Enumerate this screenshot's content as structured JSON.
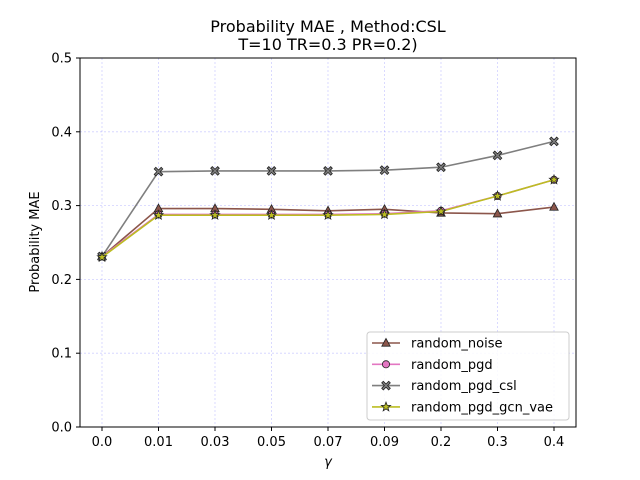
{
  "chart_data": {
    "type": "line",
    "title_line1": "Probability MAE , Method:CSL",
    "title_line2": "T=10 TR=0.3 PR=0.2)",
    "xlabel": "γ",
    "ylabel": "Probability MAE",
    "categories": [
      "0.0",
      "0.01",
      "0.03",
      "0.05",
      "0.07",
      "0.09",
      "0.2",
      "0.3",
      "0.4"
    ],
    "yticks": [
      "0.0",
      "0.1",
      "0.2",
      "0.3",
      "0.4",
      "0.5"
    ],
    "ylim": [
      0,
      0.5
    ],
    "grid": true,
    "legend_position": "bottom-right",
    "series": [
      {
        "name": "random_noise",
        "color": "#8c564b",
        "marker": "triangle",
        "values": [
          0.231,
          0.296,
          0.296,
          0.295,
          0.293,
          0.295,
          0.29,
          0.289,
          0.298
        ]
      },
      {
        "name": "random_pgd",
        "color": "#e377c2",
        "marker": "circle",
        "values": [
          0.231,
          0.288,
          0.288,
          0.288,
          0.288,
          0.289,
          0.293,
          0.313,
          0.335
        ]
      },
      {
        "name": "random_pgd_csl",
        "color": "#7f7f7f",
        "marker": "x-filled",
        "values": [
          0.231,
          0.346,
          0.347,
          0.347,
          0.347,
          0.348,
          0.352,
          0.368,
          0.387
        ]
      },
      {
        "name": "random_pgd_gcn_vae",
        "color": "#bcbd22",
        "marker": "star",
        "values": [
          0.23,
          0.287,
          0.287,
          0.287,
          0.287,
          0.288,
          0.292,
          0.313,
          0.335
        ]
      }
    ]
  }
}
